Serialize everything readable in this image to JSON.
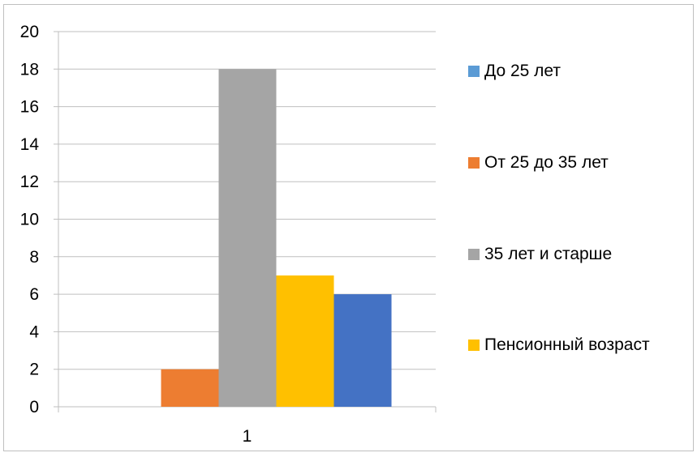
{
  "chart_data": {
    "type": "bar",
    "categories": [
      "1"
    ],
    "series": [
      {
        "name": "До 25 лет",
        "values": [
          0
        ],
        "color": "#5b9bd5"
      },
      {
        "name": "От 25 до 35 лет",
        "values": [
          2
        ],
        "color": "#ed7d31"
      },
      {
        "name": "35 лет и старше",
        "values": [
          18
        ],
        "color": "#a5a5a5"
      },
      {
        "name": "Пенсионный возраст",
        "values": [
          7
        ],
        "color": "#ffc000"
      },
      {
        "name": "",
        "values": [
          6
        ],
        "color": "#4472c4"
      }
    ],
    "title": "",
    "xlabel": "",
    "ylabel": "",
    "ylim": [
      0,
      20
    ],
    "yticks": [
      "0",
      "2",
      "4",
      "6",
      "8",
      "10",
      "12",
      "14",
      "16",
      "18",
      "20"
    ],
    "grid": true,
    "legend_position": "right"
  }
}
